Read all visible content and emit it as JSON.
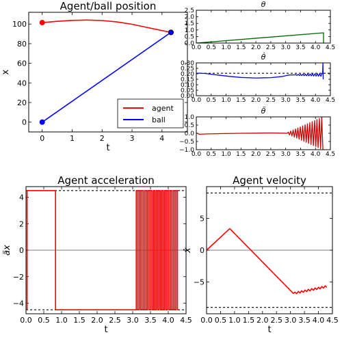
{
  "chart_data": [
    {
      "id": "pos",
      "type": "line",
      "title": "Agent/ball position",
      "xlabel": "t",
      "ylabel": "x",
      "xlim": [
        -0.45,
        4.85
      ],
      "ylim": [
        -10,
        112
      ],
      "xticks": [
        0,
        1,
        2,
        3,
        4
      ],
      "yticks": [
        0,
        20,
        40,
        60,
        80,
        100
      ],
      "legend": {
        "placement": "bottom-right",
        "entries": [
          "agent",
          "ball"
        ]
      },
      "series": [
        {
          "name": "agent",
          "color": "#ff0000",
          "x": [
            0,
            0.5,
            1.0,
            1.5,
            2.0,
            2.5,
            3.0,
            3.5,
            4.0,
            4.3
          ],
          "y": [
            101.5,
            102.8,
            103.8,
            104.1,
            103.6,
            102.2,
            99.8,
            96.6,
            93.4,
            91.5
          ],
          "markers": [
            [
              0,
              101.5
            ],
            [
              4.3,
              91.5
            ]
          ]
        },
        {
          "name": "ball",
          "color": "#0000ff",
          "x": [
            0,
            4.3
          ],
          "y": [
            0,
            91.5
          ],
          "markers": [
            [
              0,
              0
            ],
            [
              4.3,
              91.5
            ]
          ]
        }
      ]
    },
    {
      "id": "theta",
      "type": "line",
      "title": "θ",
      "xlim": [
        0,
        4.5
      ],
      "ylim": [
        0,
        2.5
      ],
      "xticks": [
        0.0,
        0.5,
        1.0,
        1.5,
        2.0,
        2.5,
        3.0,
        3.5,
        4.0,
        4.5
      ],
      "xticklabels": [
        "0.0",
        "0.5",
        "1.0",
        "1.5",
        "2.0",
        "2.5",
        "3.0",
        "3.5",
        "4.0",
        "4.5"
      ],
      "yticks": [
        0.0,
        0.5,
        1.0,
        1.5,
        2.0,
        2.5
      ],
      "yticklabels": [
        "0.0",
        "0.5",
        "1.0",
        "1.5",
        "2.0",
        "2.5"
      ],
      "series": [
        {
          "color": "#006400",
          "x": [
            0,
            4.27,
            4.27
          ],
          "y": [
            0,
            0.78,
            0
          ]
        }
      ]
    },
    {
      "id": "theta_dot",
      "type": "line",
      "title": "θ̇",
      "xlim": [
        0,
        4.5
      ],
      "ylim": [
        0,
        0.3
      ],
      "xticks": [
        0.0,
        0.5,
        1.0,
        1.5,
        2.0,
        2.5,
        3.0,
        3.5,
        4.0,
        4.5
      ],
      "xticklabels": [
        "0.0",
        "0.5",
        "1.0",
        "1.5",
        "2.0",
        "2.5",
        "3.0",
        "3.5",
        "4.0",
        "4.5"
      ],
      "yticks": [
        0.0,
        0.05,
        0.1,
        0.15,
        0.2,
        0.25,
        0.3
      ],
      "yticklabels": [
        "0.00",
        "0.05",
        "0.10",
        "0.15",
        "0.20",
        "0.25",
        "0.30"
      ],
      "hlines": [
        0.205
      ],
      "series": [
        {
          "color": "#0000ff",
          "x": [
            0,
            0.1,
            0.3,
            0.5,
            0.8,
            1.1,
            1.5,
            2.0,
            2.5,
            2.9,
            3.05,
            3.15,
            3.3
          ],
          "y": [
            0.203,
            0.206,
            0.203,
            0.196,
            0.186,
            0.177,
            0.167,
            0.162,
            0.165,
            0.176,
            0.186,
            0.19,
            0.19
          ],
          "oscillation": {
            "from": 3.3,
            "to": 4.23,
            "mean": 0.19,
            "amp_start": 0.003,
            "amp_end": 0.013,
            "step": 0.04
          },
          "spike": {
            "x": 4.25,
            "y": 0.3
          }
        }
      ]
    },
    {
      "id": "theta_ddot",
      "type": "line",
      "title": "θ̈",
      "xlim": [
        0,
        4.5
      ],
      "ylim": [
        -1.0,
        1.0
      ],
      "xticks": [
        0.0,
        0.5,
        1.0,
        1.5,
        2.0,
        2.5,
        3.0,
        3.5,
        4.0,
        4.5
      ],
      "xticklabels": [
        "0.0",
        "0.5",
        "1.0",
        "1.5",
        "2.0",
        "2.5",
        "3.0",
        "3.5",
        "4.0",
        "4.5"
      ],
      "yticks": [
        -1.0,
        -0.5,
        0.0,
        0.5,
        1.0
      ],
      "yticklabels": [
        "−1.0",
        "−0.5",
        "0.0",
        "0.5",
        "1.0"
      ],
      "series": [
        {
          "color": "#cc0000",
          "x": [
            0,
            0.1,
            0.3,
            0.8,
            1.5,
            2.0,
            2.5,
            2.9,
            3.05
          ],
          "y": [
            0.02,
            -0.06,
            -0.04,
            -0.02,
            0.0,
            0.01,
            0.02,
            0.01,
            0.0
          ],
          "oscillation": {
            "from": 3.05,
            "to": 4.25,
            "mean": 0.0,
            "amp_start": 0.04,
            "amp_end": 1.0,
            "step": 0.04
          }
        }
      ]
    },
    {
      "id": "acc",
      "type": "line",
      "title": "Agent acceleration",
      "xlabel": "t",
      "ylabel": "äx",
      "xlim": [
        0,
        4.5
      ],
      "ylim": [
        -4.8,
        4.8
      ],
      "xticks": [
        0.0,
        0.5,
        1.0,
        1.5,
        2.0,
        2.5,
        3.0,
        3.5,
        4.0,
        4.5
      ],
      "xticklabels": [
        "0.0",
        "0.5",
        "1.0",
        "1.5",
        "2.0",
        "2.5",
        "3.0",
        "3.5",
        "4.0",
        "4.5"
      ],
      "yticks": [
        -4,
        -2,
        0,
        2,
        4
      ],
      "yticklabels": [
        "−4",
        "−2",
        "0",
        "2",
        "4"
      ],
      "hlines": [
        4.5,
        -4.5
      ],
      "zero_line": true,
      "series": [
        {
          "color": "#ff0000",
          "x": [
            0.03,
            0.03,
            0.83,
            0.83,
            3.1
          ],
          "y": [
            -4.5,
            4.5,
            4.5,
            -4.5,
            -4.5
          ],
          "bangbang": {
            "from": 3.1,
            "to": 4.3,
            "high": 4.5,
            "low": -4.5,
            "period": 0.08
          }
        }
      ]
    },
    {
      "id": "vel",
      "type": "line",
      "title": "Agent velocity",
      "xlabel": "t",
      "ylabel": "ẋ",
      "xlim": [
        0,
        4.5
      ],
      "ylim": [
        -10,
        10
      ],
      "xticks": [
        0.0,
        0.5,
        1.0,
        1.5,
        2.0,
        2.5,
        3.0,
        3.5,
        4.0,
        4.5
      ],
      "xticklabels": [
        "0.0",
        "0.5",
        "1.0",
        "1.5",
        "2.0",
        "2.5",
        "3.0",
        "3.5",
        "4.0",
        "4.5"
      ],
      "yticks": [
        -5,
        0,
        5
      ],
      "yticklabels": [
        "−5",
        "0",
        "5"
      ],
      "hlines": [
        9,
        -9
      ],
      "zero_line": true,
      "series": [
        {
          "color": "#ff0000",
          "x": [
            0,
            0.83,
            3.1
          ],
          "y": [
            0,
            3.4,
            -6.8
          ],
          "oscillation": {
            "from": 3.1,
            "to": 4.3,
            "start": -6.8,
            "end": -5.7,
            "amp": 0.15,
            "step": 0.06
          }
        }
      ]
    }
  ]
}
